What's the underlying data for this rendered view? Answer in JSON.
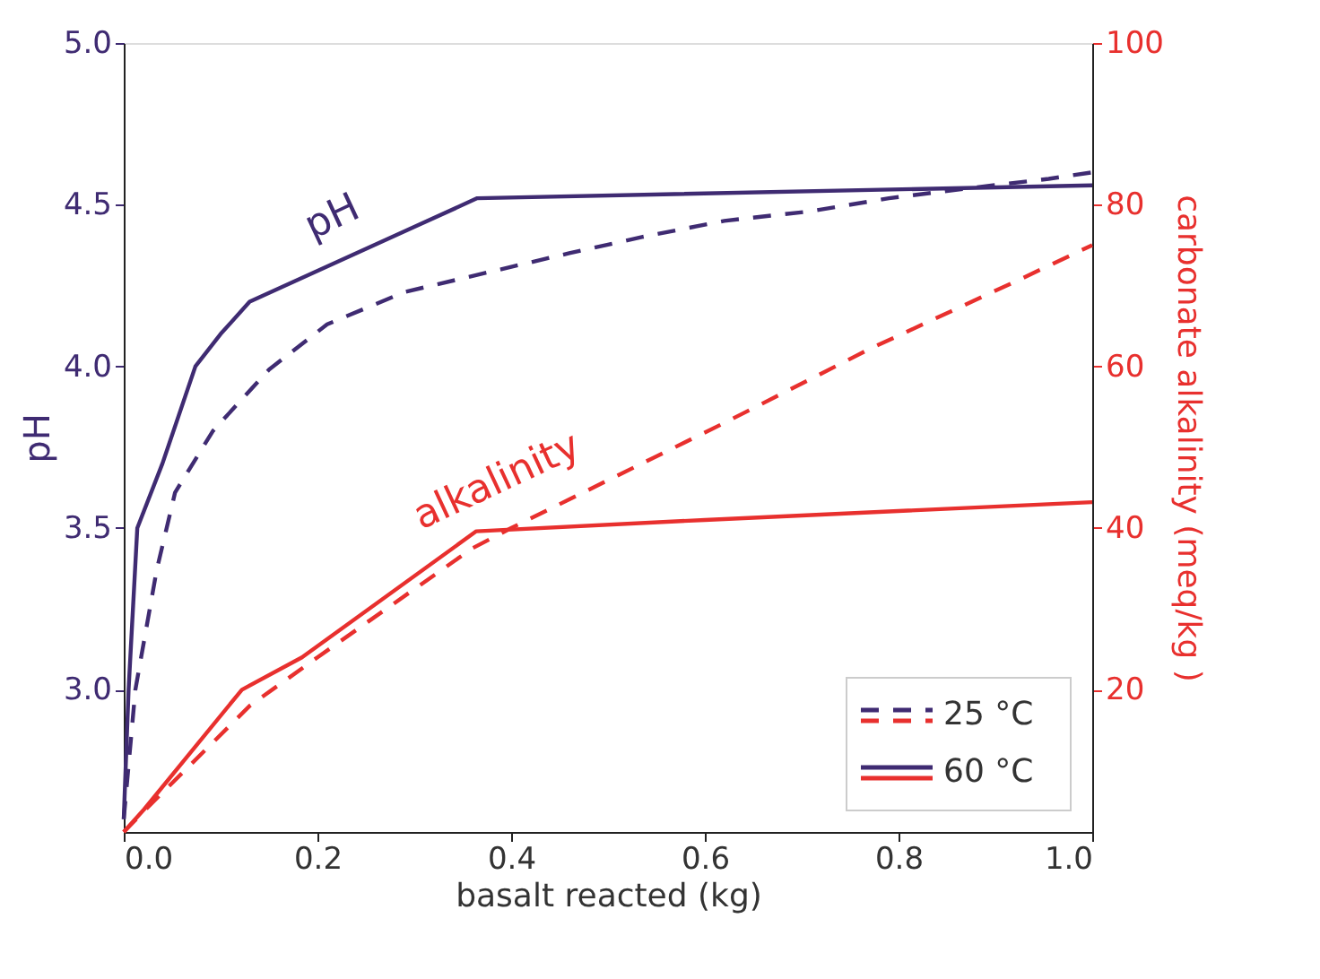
{
  "chart_data": {
    "type": "line",
    "xlabel": "basalt reacted (kg)",
    "ylabel": "pH",
    "y2label": "carbonate alkalinity (meq/kg )",
    "xlim": [
      0,
      1
    ],
    "xticks": [
      {
        "value": 0,
        "label": "0.0"
      },
      0.2,
      0.4,
      0.6,
      0.8,
      {
        "value": 1,
        "label": "1.0"
      }
    ],
    "ylim": [
      2.56,
      5.0
    ],
    "yticks": [
      {
        "value": 3,
        "label": "3.0"
      },
      3.5,
      {
        "value": 4,
        "label": "4.0"
      },
      4.5,
      {
        "value": 5,
        "label": "5.0"
      }
    ],
    "y2lim": [
      2.4,
      100
    ],
    "y2ticks": [
      20,
      40,
      60,
      80,
      100
    ],
    "grid": false,
    "legend": "bottom right",
    "marker": "none",
    "series": [
      {
        "name": "25 °C",
        "color": "#3f2b72",
        "line_style": "dashed",
        "x": [
          0,
          0.012,
          0.034,
          0.053,
          0.092,
          0.15,
          0.21,
          0.29,
          0.375,
          0.46,
          0.535,
          0.62,
          0.71,
          0.79,
          0.87,
          0.955,
          1.0
        ],
        "values": [
          2.6,
          3.0,
          3.37,
          3.61,
          3.8,
          3.99,
          4.13,
          4.23,
          4.29,
          4.35,
          4.4,
          4.45,
          4.48,
          4.52,
          4.55,
          4.58,
          4.6
        ]
      },
      {
        "name": "60 °C",
        "color": "#3f2b72",
        "line_style": "solid",
        "x": [
          0,
          0.005,
          0.014,
          0.04,
          0.074,
          0.1,
          0.13,
          0.365,
          1.0
        ],
        "values": [
          2.6,
          3.0,
          3.5,
          3.7,
          4.0,
          4.1,
          4.2,
          4.52,
          4.56
        ]
      },
      {
        "color": "#e8302e",
        "line_style": "dashed",
        "axis": "y2",
        "x": [
          0,
          0.021,
          0.13,
          0.2,
          0.36,
          0.4,
          0.62,
          0.771,
          0.926,
          1.0
        ],
        "values": [
          2.4,
          5,
          18,
          24,
          37.5,
          40,
          53,
          62.2,
          70.8,
          75
        ]
      },
      {
        "color": "#e8302e",
        "line_style": "solid",
        "axis": "y2",
        "x": [
          0,
          0.021,
          0.122,
          0.184,
          0.364,
          0.6,
          1.0
        ],
        "values": [
          2.4,
          5.2,
          20,
          24,
          39.6,
          41,
          43.2
        ]
      }
    ],
    "annotations": [
      "pH",
      "alkalinity"
    ]
  }
}
